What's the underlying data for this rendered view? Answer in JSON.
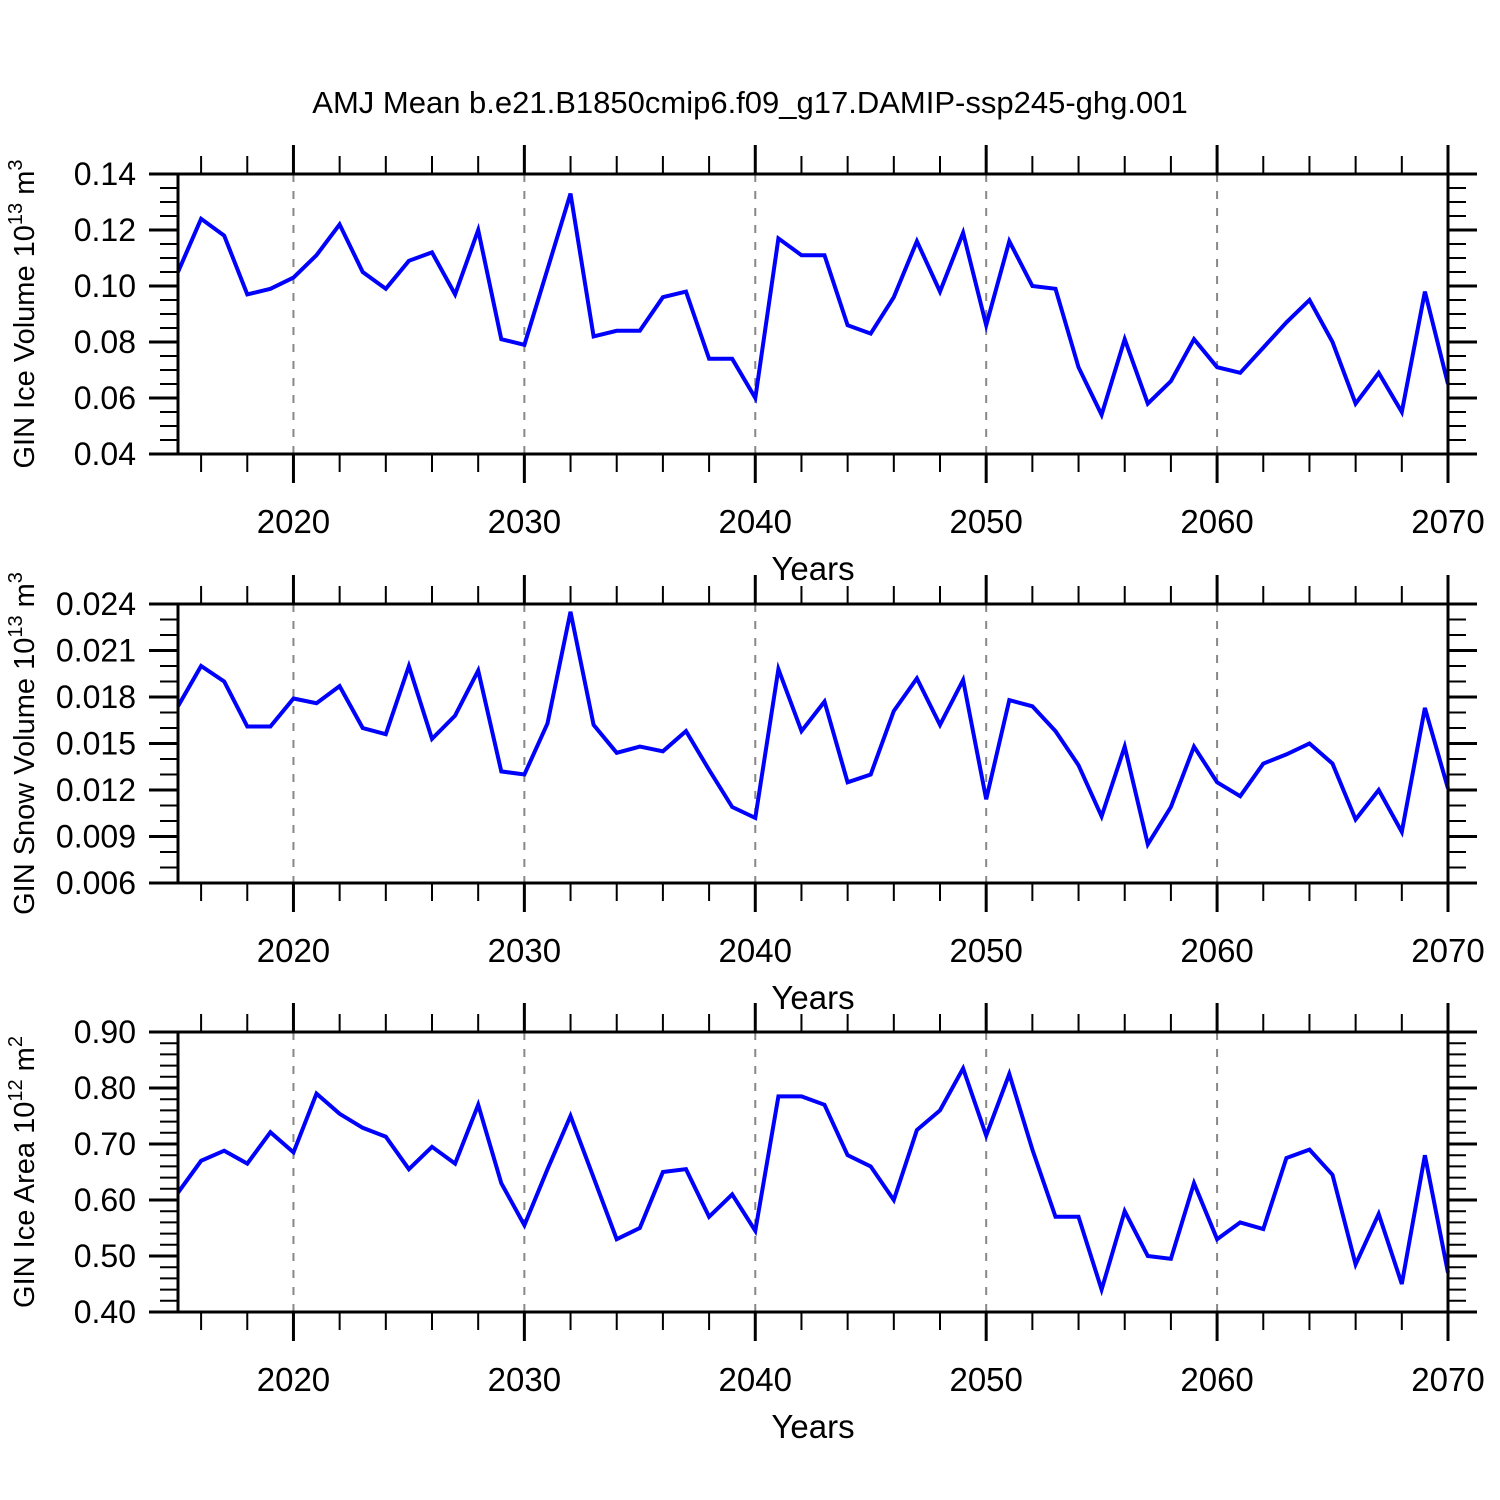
{
  "title": "AMJ Mean b.e21.B1850cmip6.f09_g17.DAMIP-ssp245-ghg.001",
  "line_color": "#0000ff",
  "grid_color": "#888888",
  "axis_color": "#000000",
  "x_axis": {
    "label": "Years",
    "range": [
      2015,
      2070
    ],
    "minor_step": 2,
    "gridlines": [
      2020,
      2030,
      2040,
      2050,
      2060
    ],
    "major_ticks": [
      {
        "v": 2020,
        "label": "2020"
      },
      {
        "v": 2030,
        "label": "2030"
      },
      {
        "v": 2040,
        "label": "2040"
      },
      {
        "v": 2050,
        "label": "2050"
      },
      {
        "v": 2060,
        "label": "2060"
      },
      {
        "v": 2070,
        "label": "2070"
      }
    ]
  },
  "chart_data": [
    {
      "type": "line",
      "title": "",
      "ylabel": "GIN Ice Volume 10^13 m^3",
      "ylabel_parts": [
        {
          "t": "GIN Ice Volume 10"
        },
        {
          "t": "13",
          "sup": true
        },
        {
          "t": " m"
        },
        {
          "t": "3",
          "sup": true
        }
      ],
      "ylim": [
        0.04,
        0.14
      ],
      "y_minor_step": 0.005,
      "yticks": [
        {
          "v": 0.04,
          "label": "0.04"
        },
        {
          "v": 0.06,
          "label": "0.06"
        },
        {
          "v": 0.08,
          "label": "0.08"
        },
        {
          "v": 0.1,
          "label": "0.10"
        },
        {
          "v": 0.12,
          "label": "0.12"
        },
        {
          "v": 0.14,
          "label": "0.14"
        }
      ],
      "x_start": 2015,
      "x_step": 1,
      "values": [
        0.105,
        0.124,
        0.118,
        0.097,
        0.099,
        0.103,
        0.111,
        0.122,
        0.105,
        0.099,
        0.109,
        0.112,
        0.097,
        0.12,
        0.081,
        0.079,
        0.106,
        0.133,
        0.082,
        0.084,
        0.084,
        0.096,
        0.098,
        0.074,
        0.074,
        0.06,
        0.117,
        0.111,
        0.111,
        0.086,
        0.083,
        0.096,
        0.116,
        0.098,
        0.119,
        0.086,
        0.116,
        0.1,
        0.099,
        0.071,
        0.054,
        0.081,
        0.058,
        0.066,
        0.081,
        0.071,
        0.069,
        0.078,
        0.087,
        0.095,
        0.08,
        0.058,
        0.069,
        0.055,
        0.098,
        0.065
      ]
    },
    {
      "type": "line",
      "title": "",
      "ylabel": "GIN Snow Volume 10^13 m^3",
      "ylabel_parts": [
        {
          "t": "GIN Snow Volume 10"
        },
        {
          "t": "13",
          "sup": true
        },
        {
          "t": " m"
        },
        {
          "t": "3",
          "sup": true
        }
      ],
      "ylim": [
        0.006,
        0.024
      ],
      "y_minor_step": 0.001,
      "yticks": [
        {
          "v": 0.006,
          "label": "0.006"
        },
        {
          "v": 0.009,
          "label": "0.009"
        },
        {
          "v": 0.012,
          "label": "0.012"
        },
        {
          "v": 0.015,
          "label": "0.015"
        },
        {
          "v": 0.018,
          "label": "0.018"
        },
        {
          "v": 0.021,
          "label": "0.021"
        },
        {
          "v": 0.024,
          "label": "0.024"
        }
      ],
      "x_start": 2015,
      "x_step": 1,
      "values": [
        0.0174,
        0.02,
        0.019,
        0.0161,
        0.0161,
        0.0179,
        0.0176,
        0.0187,
        0.016,
        0.0156,
        0.02,
        0.0153,
        0.0168,
        0.0197,
        0.0132,
        0.013,
        0.0163,
        0.0235,
        0.0162,
        0.0144,
        0.0148,
        0.0145,
        0.0158,
        0.0133,
        0.0109,
        0.0102,
        0.0198,
        0.0158,
        0.0177,
        0.0125,
        0.013,
        0.0171,
        0.0192,
        0.0162,
        0.0191,
        0.0114,
        0.0178,
        0.0174,
        0.0158,
        0.0136,
        0.0103,
        0.0148,
        0.0085,
        0.0109,
        0.0148,
        0.0125,
        0.0116,
        0.0137,
        0.0143,
        0.015,
        0.0137,
        0.0101,
        0.012,
        0.0093,
        0.0173,
        0.0121
      ]
    },
    {
      "type": "line",
      "title": "",
      "ylabel": "GIN Ice Area 10^12 m^2",
      "ylabel_parts": [
        {
          "t": "GIN Ice Area 10"
        },
        {
          "t": "12",
          "sup": true
        },
        {
          "t": " m"
        },
        {
          "t": "2",
          "sup": true
        }
      ],
      "ylim": [
        0.4,
        0.9
      ],
      "y_minor_step": 0.02,
      "yticks": [
        {
          "v": 0.4,
          "label": "0.40"
        },
        {
          "v": 0.5,
          "label": "0.50"
        },
        {
          "v": 0.6,
          "label": "0.60"
        },
        {
          "v": 0.7,
          "label": "0.70"
        },
        {
          "v": 0.8,
          "label": "0.80"
        },
        {
          "v": 0.9,
          "label": "0.90"
        }
      ],
      "x_start": 2015,
      "x_step": 1,
      "values": [
        0.613,
        0.67,
        0.688,
        0.665,
        0.721,
        0.685,
        0.79,
        0.754,
        0.729,
        0.713,
        0.655,
        0.695,
        0.665,
        0.77,
        0.63,
        0.555,
        0.655,
        0.75,
        0.64,
        0.53,
        0.55,
        0.65,
        0.655,
        0.57,
        0.61,
        0.545,
        0.785,
        0.785,
        0.77,
        0.68,
        0.66,
        0.6,
        0.725,
        0.76,
        0.835,
        0.715,
        0.825,
        0.69,
        0.57,
        0.57,
        0.44,
        0.58,
        0.5,
        0.495,
        0.63,
        0.53,
        0.56,
        0.548,
        0.675,
        0.69,
        0.645,
        0.485,
        0.575,
        0.45,
        0.68,
        0.47
      ]
    }
  ]
}
